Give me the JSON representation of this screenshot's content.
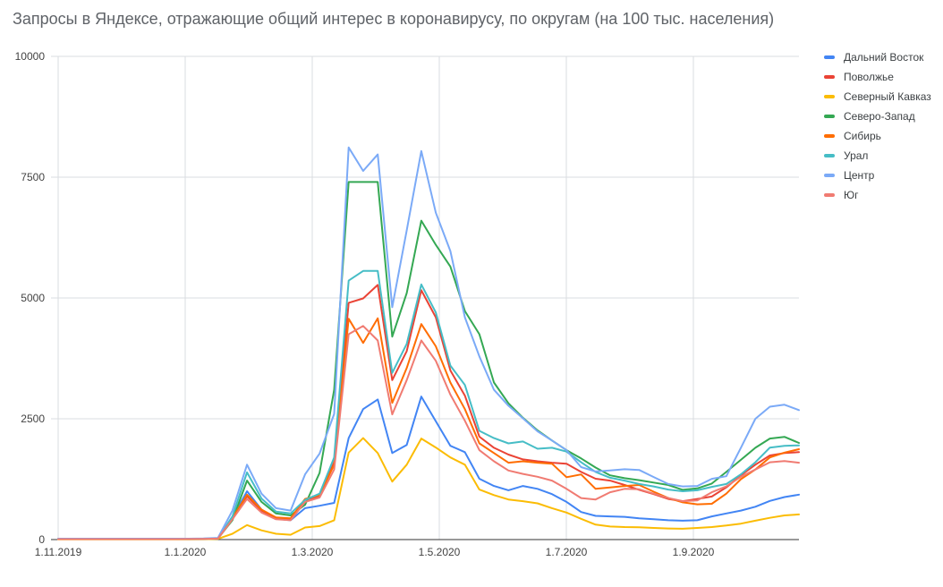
{
  "title": "Запросы в Яндексе, отражающие общий интерес в коронавирусу, по округам (на 100 тыс. населения)",
  "chart_data": {
    "type": "line",
    "title": "Запросы в Яндексе, отражающие общий интерес в коронавирусу, по округам (на 100 тыс. населения)",
    "xlabel": "",
    "ylabel": "",
    "ylim": [
      0,
      10000
    ],
    "y_ticks": [
      0,
      2500,
      5000,
      7500,
      10000
    ],
    "x_tick_labels": [
      "1.11.2019",
      "1.1.2020",
      "1.3.2020",
      "1.5.2020",
      "1.7.2020",
      "1.9.2020"
    ],
    "grid": true,
    "legend_position": "right",
    "x": [
      "1.11.2019",
      "8.11.2019",
      "15.11.2019",
      "22.11.2019",
      "29.11.2019",
      "6.12.2019",
      "13.12.2019",
      "20.12.2019",
      "27.12.2019",
      "3.1.2020",
      "10.1.2020",
      "17.1.2020",
      "24.1.2020",
      "31.1.2020",
      "7.2.2020",
      "14.2.2020",
      "21.2.2020",
      "28.2.2020",
      "6.3.2020",
      "13.3.2020",
      "20.3.2020",
      "27.3.2020",
      "3.4.2020",
      "10.4.2020",
      "17.4.2020",
      "24.4.2020",
      "1.5.2020",
      "8.5.2020",
      "15.5.2020",
      "22.5.2020",
      "29.5.2020",
      "5.6.2020",
      "12.6.2020",
      "19.6.2020",
      "26.6.2020",
      "3.7.2020",
      "10.7.2020",
      "17.7.2020",
      "24.7.2020",
      "31.7.2020",
      "7.8.2020",
      "14.8.2020",
      "21.8.2020",
      "28.8.2020",
      "4.9.2020",
      "11.9.2020",
      "18.9.2020",
      "25.9.2020",
      "2.10.2020",
      "9.10.2020",
      "16.10.2020",
      "23.10.2020"
    ],
    "series": [
      {
        "name": "Дальний Восток",
        "color": "#4285F4",
        "values": [
          15,
          15,
          15,
          15,
          15,
          15,
          15,
          15,
          15,
          16,
          18,
          25,
          450,
          1000,
          620,
          430,
          400,
          650,
          700,
          760,
          2100,
          2700,
          2900,
          1790,
          1960,
          2960,
          2450,
          1940,
          1810,
          1260,
          1110,
          1020,
          1110,
          1050,
          940,
          780,
          570,
          490,
          480,
          470,
          440,
          420,
          400,
          390,
          400,
          480,
          540,
          600,
          680,
          800,
          880,
          930
        ]
      },
      {
        "name": "Поволжье",
        "color": "#EA4335",
        "values": [
          12,
          12,
          12,
          12,
          12,
          12,
          12,
          12,
          12,
          13,
          15,
          22,
          430,
          900,
          600,
          440,
          420,
          820,
          900,
          1600,
          4900,
          4990,
          5270,
          3300,
          3900,
          5160,
          4600,
          3500,
          2980,
          2130,
          1900,
          1760,
          1660,
          1620,
          1590,
          1570,
          1400,
          1260,
          1220,
          1130,
          1030,
          940,
          840,
          795,
          840,
          890,
          1080,
          1330,
          1550,
          1740,
          1790,
          1810
        ]
      },
      {
        "name": "Северный Кавказ",
        "color": "#FBBC04",
        "values": [
          5,
          5,
          5,
          5,
          5,
          5,
          5,
          5,
          5,
          6,
          8,
          15,
          120,
          300,
          190,
          120,
          100,
          250,
          280,
          400,
          1800,
          2100,
          1790,
          1200,
          1550,
          2090,
          1905,
          1700,
          1550,
          1035,
          920,
          830,
          795,
          750,
          650,
          560,
          430,
          310,
          270,
          260,
          255,
          240,
          230,
          225,
          240,
          260,
          290,
          330,
          390,
          450,
          500,
          520
        ]
      },
      {
        "name": "Северо-Запад",
        "color": "#34A853",
        "values": [
          12,
          12,
          12,
          12,
          12,
          12,
          12,
          12,
          12,
          13,
          15,
          22,
          400,
          1220,
          780,
          540,
          500,
          720,
          1380,
          3100,
          7400,
          7400,
          7400,
          4200,
          5100,
          6600,
          6100,
          5650,
          4730,
          4250,
          3250,
          2820,
          2520,
          2260,
          2050,
          1850,
          1680,
          1490,
          1330,
          1270,
          1230,
          1180,
          1130,
          1030,
          1060,
          1160,
          1400,
          1650,
          1900,
          2090,
          2126,
          2000
        ]
      },
      {
        "name": "Сибирь",
        "color": "#FF6D01",
        "values": [
          12,
          12,
          12,
          12,
          12,
          12,
          12,
          12,
          12,
          13,
          15,
          22,
          440,
          930,
          620,
          460,
          440,
          840,
          920,
          1550,
          4570,
          4070,
          4580,
          2830,
          3550,
          4460,
          4000,
          3250,
          2700,
          1990,
          1790,
          1590,
          1620,
          1590,
          1570,
          1290,
          1349,
          1050,
          1080,
          1110,
          1130,
          990,
          860,
          770,
          730,
          740,
          950,
          1250,
          1450,
          1700,
          1800,
          1870
        ]
      },
      {
        "name": "Урал",
        "color": "#46BDC6",
        "values": [
          14,
          14,
          14,
          14,
          14,
          14,
          14,
          14,
          14,
          15,
          17,
          25,
          480,
          1390,
          850,
          580,
          540,
          820,
          950,
          1700,
          5360,
          5560,
          5560,
          3450,
          4050,
          5280,
          4700,
          3600,
          3200,
          2250,
          2100,
          1990,
          2030,
          1880,
          1900,
          1820,
          1600,
          1400,
          1280,
          1220,
          1150,
          1100,
          1035,
          1000,
          1020,
          1090,
          1150,
          1350,
          1600,
          1904,
          1941,
          1950
        ]
      },
      {
        "name": "Центр",
        "color": "#7BAAF7",
        "values": [
          18,
          18,
          18,
          18,
          18,
          18,
          18,
          18,
          18,
          19,
          22,
          35,
          600,
          1550,
          950,
          650,
          600,
          1350,
          1780,
          2600,
          8115,
          7630,
          7970,
          4810,
          6400,
          8040,
          6765,
          5970,
          4600,
          3790,
          3100,
          2770,
          2510,
          2240,
          2050,
          1850,
          1500,
          1410,
          1430,
          1455,
          1440,
          1294,
          1150,
          1100,
          1110,
          1257,
          1312,
          1900,
          2500,
          2750,
          2790,
          2680
        ]
      },
      {
        "name": "Юг",
        "color": "#F07B72",
        "values": [
          10,
          10,
          10,
          10,
          10,
          10,
          10,
          10,
          10,
          11,
          13,
          20,
          420,
          840,
          560,
          420,
          400,
          780,
          870,
          1450,
          4250,
          4420,
          4120,
          2590,
          3300,
          4120,
          3700,
          3000,
          2460,
          1850,
          1620,
          1430,
          1360,
          1300,
          1220,
          1050,
          860,
          830,
          980,
          1050,
          1040,
          950,
          860,
          795,
          810,
          980,
          1100,
          1300,
          1450,
          1600,
          1626,
          1590
        ]
      }
    ],
    "colors": {
      "background": "#ffffff",
      "gridline": "#dadce0",
      "axis_line": "#333333",
      "tick_text": "#424242",
      "title_text": "#5f6368"
    }
  }
}
